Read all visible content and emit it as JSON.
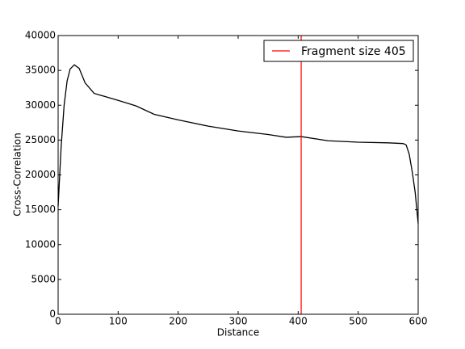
{
  "chart_data": {
    "type": "line",
    "xlabel": "Distance",
    "ylabel": "Cross-Correlation",
    "xlim": [
      0,
      600
    ],
    "ylim": [
      0,
      40000
    ],
    "xticks": [
      0,
      100,
      200,
      300,
      400,
      500,
      600
    ],
    "yticks": [
      0,
      5000,
      10000,
      15000,
      20000,
      25000,
      30000,
      35000,
      40000
    ],
    "series": [
      {
        "color": "#000000",
        "x": [
          0,
          5,
          10,
          15,
          20,
          27,
          35,
          45,
          60,
          80,
          100,
          130,
          160,
          200,
          250,
          300,
          350,
          380,
          405,
          450,
          500,
          550,
          575,
          580,
          585,
          590,
          595,
          600
        ],
        "values": [
          15500,
          24000,
          30000,
          33500,
          35200,
          35800,
          35300,
          33200,
          31700,
          31200,
          30700,
          29900,
          28700,
          27900,
          27000,
          26300,
          25800,
          25400,
          25500,
          24900,
          24700,
          24600,
          24500,
          24300,
          23000,
          20500,
          17500,
          13000
        ]
      }
    ],
    "vline": {
      "x": 405,
      "label": "Fragment size 405",
      "color": "#ff0000"
    },
    "legend": "upper right"
  }
}
